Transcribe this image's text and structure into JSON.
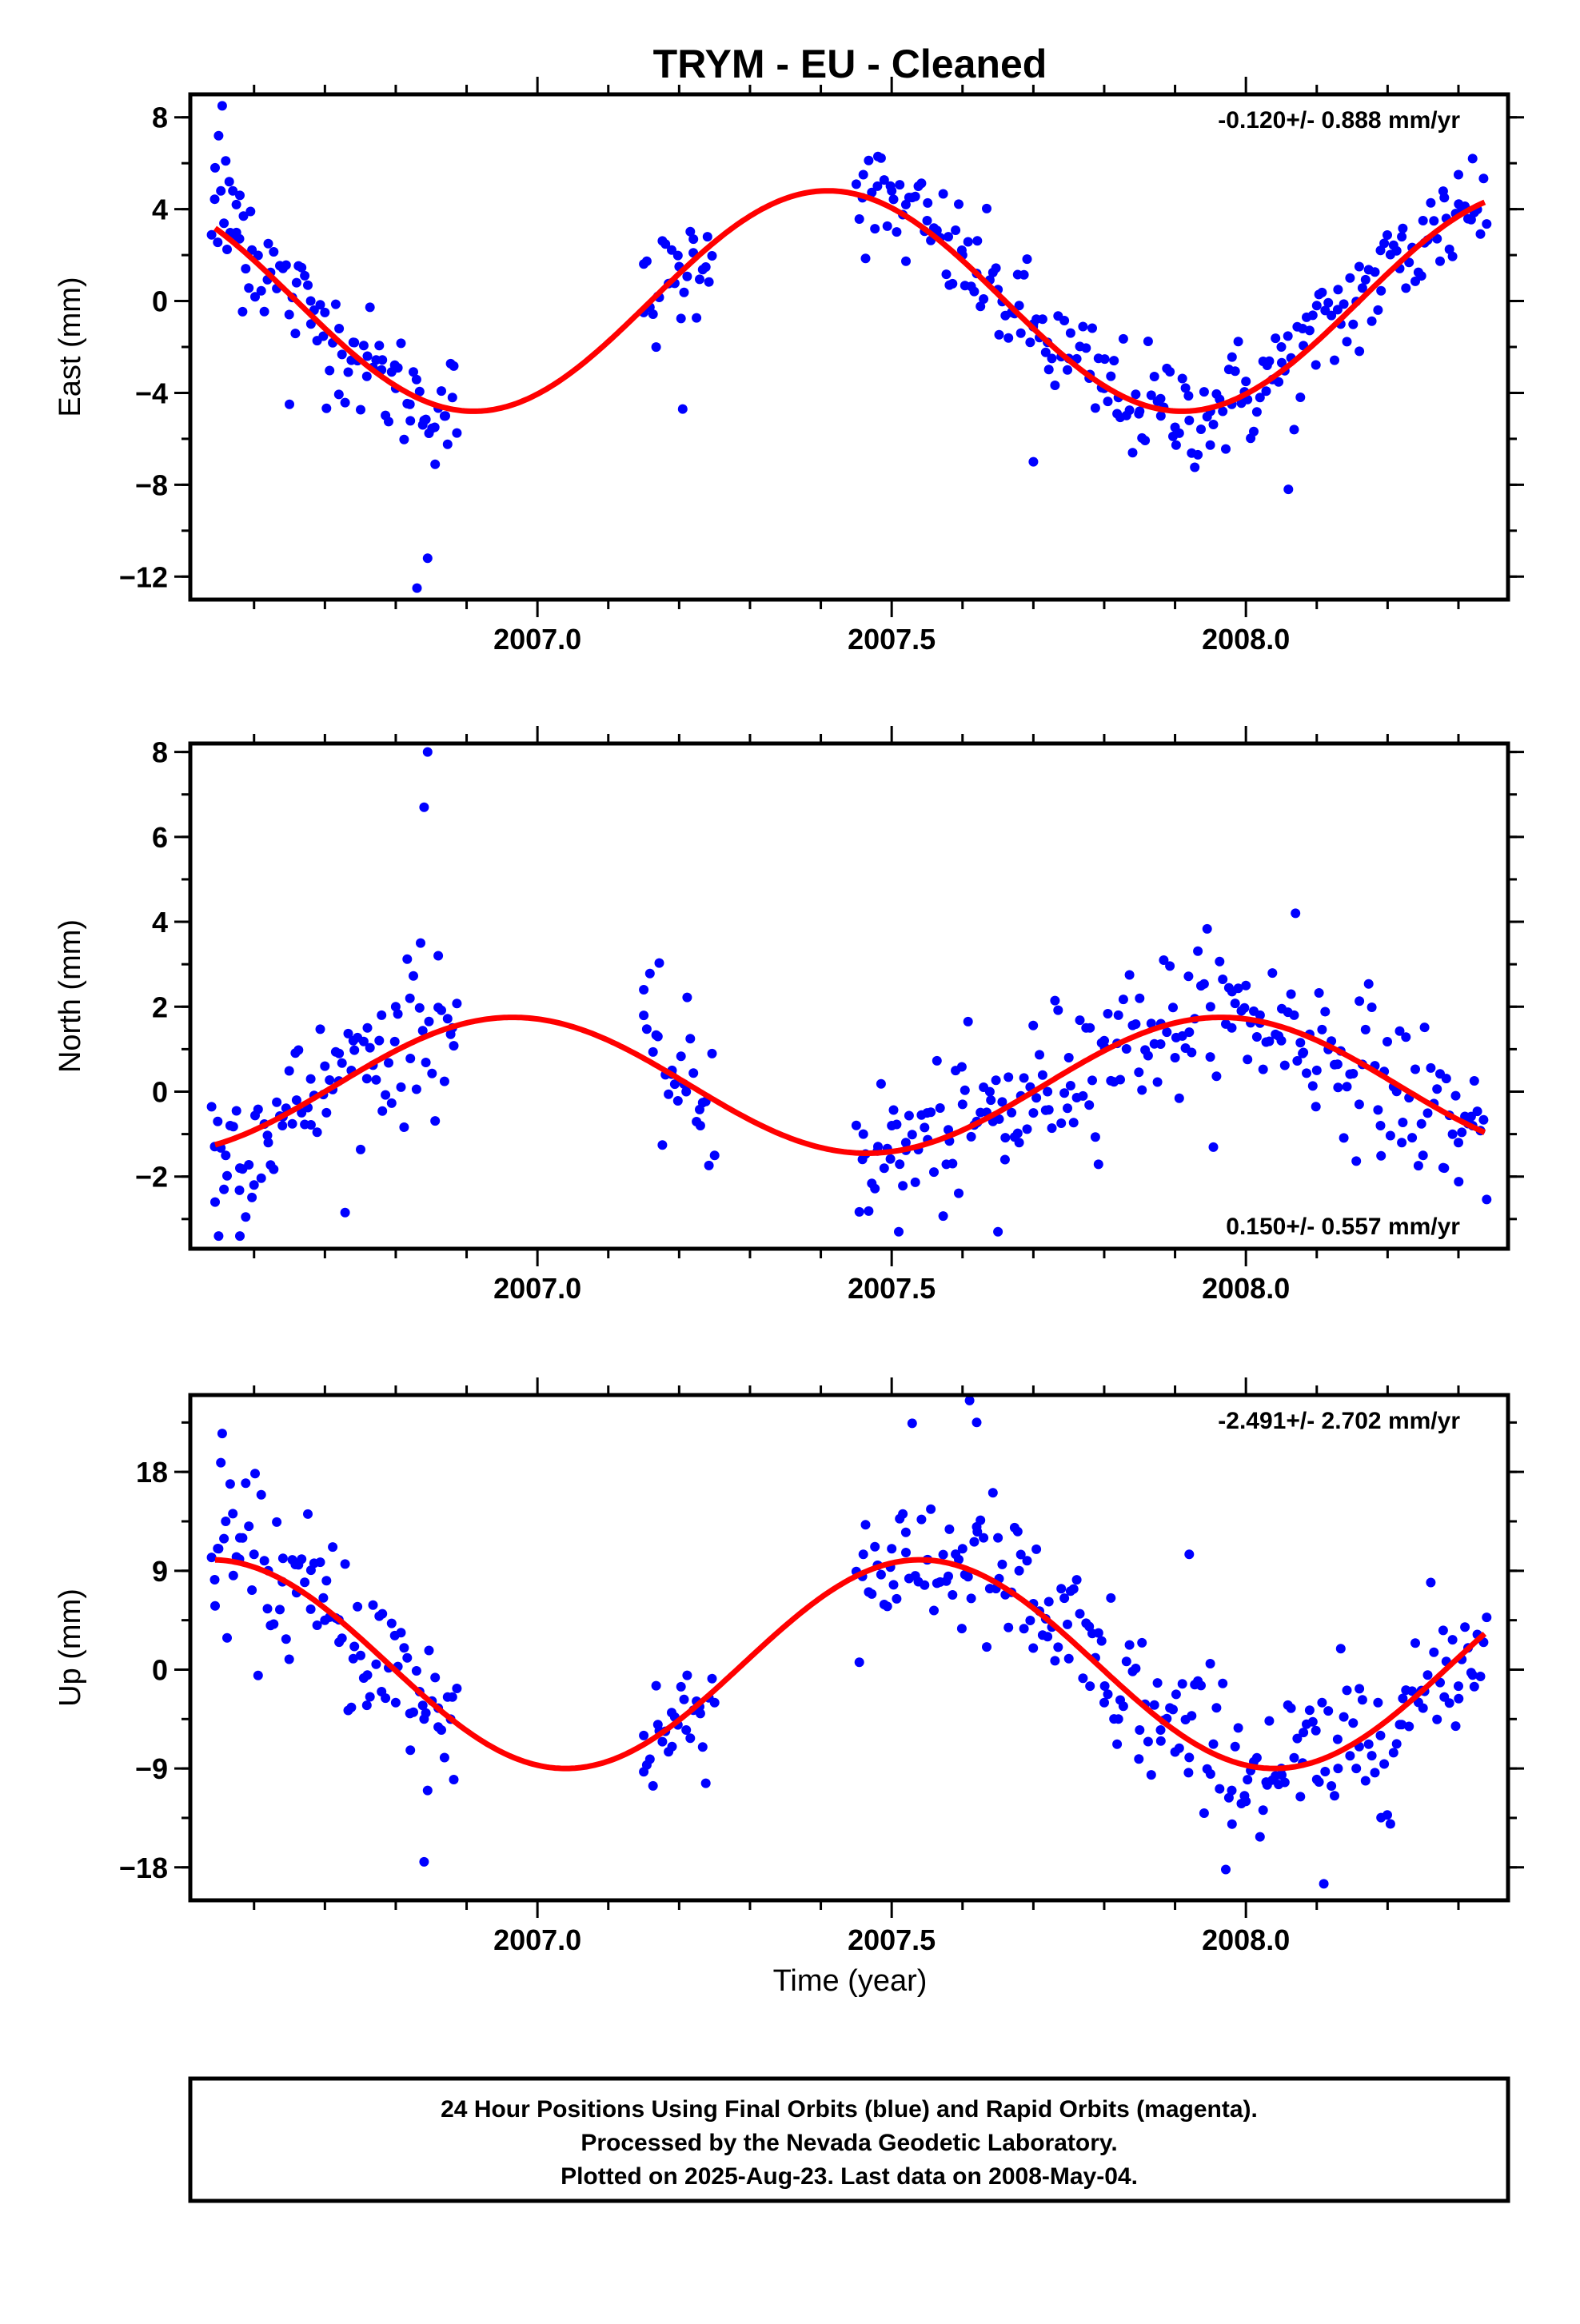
{
  "title": "TRYM  - EU - Cleaned",
  "x_axis_label": "Time (year)",
  "footer_lines": [
    "24 Hour Positions Using Final Orbits (blue) and Rapid Orbits (magenta).",
    "Processed by the Nevada Geodetic Laboratory.",
    "Plotted on 2025-Aug-23. Last data on 2008-May-04."
  ],
  "colors": {
    "data": "#0000ff",
    "fit": "#ff0000",
    "frame": "#000000"
  },
  "chart_data": [
    {
      "type": "scatter",
      "component": "east",
      "ylabel": "East (mm)",
      "rate_label": "-0.120+/- 0.888 mm/yr",
      "xlim": [
        2006.51,
        2008.37
      ],
      "ylim": [
        -13,
        9
      ],
      "xticks": [
        "2007.0",
        "2007.5",
        "2008.0"
      ],
      "yticks": [
        "8",
        "4",
        "0",
        "−4",
        "−8",
        "−12"
      ],
      "ytick_values": [
        8,
        4,
        0,
        -4,
        -8,
        -12
      ],
      "gap": [
        2006.9,
        2007.15
      ],
      "gap2": [
        2007.25,
        2007.45
      ],
      "fit": {
        "offset": 0.0,
        "amplitude": 4.8,
        "phase_peak": 2007.41,
        "period": 1.0,
        "rate": -0.12
      },
      "series": [
        {
          "name": "Final Orbits",
          "x": [
            2006.545,
            2006.55,
            2006.555,
            2006.56,
            2006.565,
            2006.57,
            2006.575,
            2006.58,
            2006.585,
            2006.595,
            2006.62,
            2006.64,
            2006.66,
            2006.68,
            2006.7,
            2006.72,
            2006.74,
            2006.76,
            2006.78,
            2006.8,
            2006.82,
            2006.84,
            2006.855,
            2006.87,
            2006.88,
            2007.15,
            2007.17,
            2007.19,
            2007.2,
            2007.22,
            2007.24,
            2007.46,
            2007.48,
            2007.5,
            2007.52,
            2007.55,
            2007.58,
            2007.6,
            2007.62,
            2007.65,
            2007.68,
            2007.7,
            2007.72,
            2007.75,
            2007.78,
            2007.8,
            2007.82,
            2007.85,
            2007.88,
            2007.9,
            2007.92,
            2007.95,
            2007.98,
            2008.0,
            2008.03,
            2008.05,
            2008.08,
            2008.1,
            2008.13,
            2008.16,
            2008.19,
            2008.22,
            2008.25,
            2008.28,
            2008.3,
            2008.32,
            2006.65,
            2006.83,
            2006.845,
            2007.205,
            2007.7,
            2008.06
          ],
          "y": [
            5.8,
            7.2,
            8.5,
            6.1,
            5.2,
            4.8,
            4.2,
            4.6,
            3.7,
            3.9,
            2.5,
            1.5,
            0.8,
            0.0,
            -0.5,
            -1.2,
            -1.8,
            -2.4,
            -3.0,
            -3.8,
            -4.5,
            -5.2,
            -5.5,
            -5.0,
            -4.2,
            -0.5,
            0.2,
            0.8,
            1.5,
            2.1,
            2.8,
            5.5,
            5.0,
            4.8,
            4.2,
            3.5,
            2.8,
            2.0,
            1.2,
            0.5,
            -0.2,
            -1.0,
            -1.8,
            -2.5,
            -3.2,
            -3.8,
            -4.2,
            -4.8,
            -5.0,
            -5.5,
            -5.2,
            -4.8,
            -4.5,
            -3.5,
            -2.8,
            -2.0,
            -1.2,
            -0.2,
            0.5,
            1.5,
            2.2,
            2.8,
            3.5,
            4.5,
            5.5,
            6.2,
            -4.5,
            -12.5,
            -11.2,
            -4.7,
            -7.0,
            -8.2
          ]
        }
      ]
    },
    {
      "type": "scatter",
      "component": "north",
      "ylabel": "North (mm)",
      "rate_label": "0.150+/- 0.557 mm/yr",
      "xlim": [
        2006.51,
        2008.37
      ],
      "ylim": [
        -3.7,
        8.2
      ],
      "xticks": [
        "2007.0",
        "2007.5",
        "2008.0"
      ],
      "yticks": [
        "8",
        "6",
        "4",
        "2",
        "0",
        "−2"
      ],
      "ytick_values": [
        8,
        6,
        4,
        2,
        0,
        -2
      ],
      "gap": [
        2006.9,
        2007.15
      ],
      "gap2": [
        2007.25,
        2007.45
      ],
      "fit": {
        "offset": 0.15,
        "amplitude": 1.6,
        "phase_peak": 2006.965,
        "period": 1.0,
        "rate": 0.15
      },
      "series": [
        {
          "name": "Final Orbits",
          "x": [
            2006.545,
            2006.56,
            2006.58,
            2006.6,
            2006.62,
            2006.64,
            2006.66,
            2006.68,
            2006.7,
            2006.72,
            2006.74,
            2006.76,
            2006.78,
            2006.8,
            2006.82,
            2006.835,
            2006.84,
            2006.845,
            2006.86,
            2006.88,
            2007.15,
            2007.17,
            2007.19,
            2007.21,
            2007.23,
            2007.25,
            2007.46,
            2007.48,
            2007.5,
            2007.52,
            2007.55,
            2007.58,
            2007.6,
            2007.62,
            2007.64,
            2007.66,
            2007.68,
            2007.7,
            2007.72,
            2007.75,
            2007.78,
            2007.8,
            2007.82,
            2007.85,
            2007.88,
            2007.9,
            2007.92,
            2007.95,
            2007.98,
            2008.0,
            2008.02,
            2008.05,
            2008.08,
            2008.1,
            2008.13,
            2008.16,
            2008.19,
            2008.22,
            2008.25,
            2008.28,
            2008.3,
            2008.32,
            2006.55,
            2006.58,
            2007.51,
            2007.65,
            2008.07
          ],
          "y": [
            -2.6,
            -1.5,
            -1.8,
            -2.2,
            -1.2,
            -0.8,
            -0.2,
            0.3,
            0.6,
            0.9,
            1.2,
            1.5,
            1.8,
            2.0,
            2.2,
            3.5,
            6.7,
            8.0,
            3.2,
            1.5,
            2.4,
            1.3,
            0.5,
            0.0,
            -0.8,
            -1.5,
            -1.0,
            -1.4,
            -0.8,
            -1.2,
            -0.5,
            -0.9,
            -0.3,
            -0.7,
            -0.2,
            -1.6,
            -1.2,
            -0.5,
            0.0,
            0.8,
            1.5,
            1.2,
            1.8,
            2.2,
            1.6,
            0.8,
            1.4,
            2.0,
            1.5,
            2.5,
            1.8,
            1.2,
            0.9,
            0.5,
            0.1,
            -0.3,
            -0.8,
            -1.2,
            -1.5,
            -1.8,
            -1.2,
            -0.8,
            -3.4,
            -3.4,
            -3.3,
            -3.3,
            4.2
          ]
        }
      ]
    },
    {
      "type": "scatter",
      "component": "up",
      "ylabel": "Up (mm)",
      "rate_label": "-2.491+/- 2.702 mm/yr",
      "xlim": [
        2006.51,
        2008.37
      ],
      "ylim": [
        -21,
        25
      ],
      "xticks": [
        "2007.0",
        "2007.5",
        "2008.0"
      ],
      "yticks": [
        "18",
        "9",
        "0",
        "−9",
        "−18"
      ],
      "ytick_values": [
        18,
        9,
        0,
        -9,
        -18
      ],
      "gap": [
        2006.9,
        2007.15
      ],
      "gap2": [
        2007.25,
        2007.45
      ],
      "fit": {
        "offset": 0.5,
        "amplitude": 9.5,
        "phase_peak": 2007.54,
        "period": 1.0,
        "rate": -2.491
      },
      "series": [
        {
          "name": "Final Orbits",
          "x": [
            2006.545,
            2006.55,
            2006.56,
            2006.57,
            2006.58,
            2006.6,
            2006.62,
            2006.64,
            2006.66,
            2006.68,
            2006.7,
            2006.72,
            2006.74,
            2006.76,
            2006.78,
            2006.8,
            2006.82,
            2006.84,
            2006.86,
            2006.88,
            2007.15,
            2007.17,
            2007.19,
            2007.21,
            2007.23,
            2007.25,
            2007.46,
            2007.48,
            2007.5,
            2007.52,
            2007.55,
            2007.58,
            2007.6,
            2007.62,
            2007.65,
            2007.68,
            2007.7,
            2007.72,
            2007.75,
            2007.78,
            2007.8,
            2007.82,
            2007.85,
            2007.88,
            2007.9,
            2007.92,
            2007.95,
            2007.98,
            2008.0,
            2008.03,
            2008.05,
            2008.08,
            2008.1,
            2008.13,
            2008.16,
            2008.19,
            2008.22,
            2008.25,
            2008.28,
            2008.3,
            2008.32,
            2006.555,
            2006.84,
            2006.845,
            2007.61,
            2007.62,
            2007.92,
            2008.11
          ],
          "y": [
            5.8,
            11.0,
            13.5,
            14.2,
            12.0,
            10.5,
            9.0,
            8.0,
            7.0,
            5.5,
            4.5,
            2.5,
            1.0,
            -0.5,
            -2.0,
            -3.0,
            -4.0,
            -4.5,
            -3.5,
            -2.5,
            -6.0,
            -5.0,
            -7.0,
            -5.5,
            -4.0,
            -3.0,
            10.5,
            9.5,
            11.0,
            12.5,
            10.0,
            8.5,
            11.0,
            13.0,
            12.0,
            9.0,
            6.0,
            3.0,
            1.0,
            -1.5,
            -3.0,
            -4.5,
            -5.5,
            -6.5,
            -7.5,
            -8.0,
            -9.5,
            -11.0,
            -12.0,
            -10.5,
            -9.0,
            -8.5,
            -10.0,
            -9.0,
            -7.0,
            -6.0,
            -5.0,
            -3.5,
            -2.5,
            -1.5,
            -0.5,
            21.5,
            -17.5,
            -11.0,
            24.5,
            22.5,
            10.5,
            -19.5
          ]
        }
      ]
    }
  ]
}
